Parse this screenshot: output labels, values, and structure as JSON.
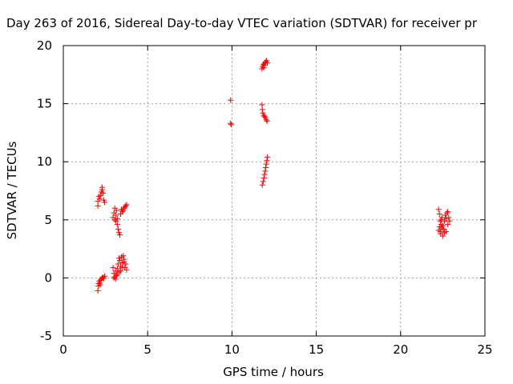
{
  "chart_data": {
    "type": "scatter",
    "title": "Day 263 of 2016, Sidereal Day-to-day VTEC variation (SDTVAR) for receiver pr",
    "xlabel": "GPS time / hours",
    "ylabel": "SDTVAR / TECUs",
    "xlim": [
      0,
      25
    ],
    "ylim": [
      -5,
      20
    ],
    "xticks": [
      "0",
      "5",
      "10",
      "15",
      "20",
      "25"
    ],
    "yticks": [
      "-5",
      "0",
      "5",
      "10",
      "15",
      "20"
    ],
    "grid": true,
    "marker": "+",
    "color": "#ff0000",
    "series": [
      {
        "points": [
          [
            2.05,
            -1.1
          ],
          [
            2.08,
            -0.7
          ],
          [
            2.1,
            -0.5
          ],
          [
            2.13,
            -0.3
          ],
          [
            2.16,
            -0.45
          ],
          [
            2.2,
            -0.2
          ],
          [
            2.25,
            -0.1
          ],
          [
            2.3,
            0.0
          ],
          [
            2.35,
            0.05
          ],
          [
            2.4,
            -0.05
          ],
          [
            2.45,
            0.15
          ],
          [
            2.18,
            -0.6
          ],
          [
            2.05,
            6.2
          ],
          [
            2.05,
            6.6
          ],
          [
            2.1,
            7.0
          ],
          [
            2.15,
            6.8
          ],
          [
            2.2,
            7.1
          ],
          [
            2.25,
            7.4
          ],
          [
            2.3,
            7.6
          ],
          [
            2.35,
            7.3
          ],
          [
            2.4,
            6.7
          ],
          [
            2.45,
            6.5
          ],
          [
            2.3,
            7.8
          ],
          [
            2.95,
            5.2
          ],
          [
            3.0,
            5.6
          ],
          [
            3.05,
            6.0
          ],
          [
            3.1,
            5.4
          ],
          [
            3.15,
            5.8
          ],
          [
            3.2,
            5.1
          ],
          [
            3.2,
            4.6
          ],
          [
            3.25,
            4.2
          ],
          [
            3.3,
            3.9
          ],
          [
            3.35,
            3.7
          ],
          [
            3.4,
            5.5
          ],
          [
            3.45,
            5.9
          ],
          [
            3.5,
            5.7
          ],
          [
            3.55,
            5.8
          ],
          [
            3.6,
            6.0
          ],
          [
            3.65,
            6.1
          ],
          [
            3.7,
            6.2
          ],
          [
            3.75,
            6.3
          ],
          [
            3.05,
            5.0
          ],
          [
            3.12,
            4.9
          ],
          [
            2.95,
            0.9
          ],
          [
            3.0,
            0.4
          ],
          [
            3.05,
            0.1
          ],
          [
            3.1,
            0.6
          ],
          [
            3.15,
            0.2
          ],
          [
            3.2,
            0.8
          ],
          [
            3.25,
            1.2
          ],
          [
            3.3,
            0.5
          ],
          [
            3.35,
            1.5
          ],
          [
            3.4,
            1.0
          ],
          [
            3.45,
            1.8
          ],
          [
            3.5,
            1.3
          ],
          [
            3.55,
            1.9
          ],
          [
            3.6,
            1.6
          ],
          [
            3.65,
            0.9
          ],
          [
            3.7,
            1.2
          ],
          [
            3.75,
            0.7
          ],
          [
            3.0,
            0.0
          ],
          [
            3.1,
            -0.1
          ],
          [
            3.2,
            0.3
          ],
          [
            3.3,
            1.7
          ],
          [
            3.4,
            0.6
          ],
          [
            3.5,
            0.9
          ],
          [
            3.6,
            1.4
          ],
          [
            9.92,
            15.3
          ],
          [
            9.92,
            13.3
          ],
          [
            9.95,
            13.2
          ],
          [
            11.78,
            14.9
          ],
          [
            11.8,
            14.5
          ],
          [
            11.83,
            14.2
          ],
          [
            11.88,
            14.0
          ],
          [
            11.93,
            13.9
          ],
          [
            11.98,
            13.8
          ],
          [
            12.03,
            13.6
          ],
          [
            12.08,
            13.5
          ],
          [
            11.8,
            8.0
          ],
          [
            11.85,
            8.3
          ],
          [
            11.9,
            8.6
          ],
          [
            11.93,
            8.9
          ],
          [
            11.97,
            9.2
          ],
          [
            12.0,
            9.5
          ],
          [
            12.03,
            9.8
          ],
          [
            12.07,
            10.1
          ],
          [
            12.1,
            10.4
          ],
          [
            11.78,
            18.0
          ],
          [
            11.82,
            18.2
          ],
          [
            11.86,
            18.4
          ],
          [
            11.9,
            18.3
          ],
          [
            11.95,
            18.5
          ],
          [
            12.0,
            18.6
          ],
          [
            12.05,
            18.7
          ],
          [
            12.1,
            18.5
          ],
          [
            11.88,
            18.1
          ],
          [
            22.25,
            5.9
          ],
          [
            22.3,
            5.5
          ],
          [
            22.32,
            4.4
          ],
          [
            22.35,
            4.0
          ],
          [
            22.38,
            3.8
          ],
          [
            22.4,
            4.6
          ],
          [
            22.45,
            5.2
          ],
          [
            22.5,
            3.6
          ],
          [
            22.55,
            4.2
          ],
          [
            22.6,
            4.9
          ],
          [
            22.65,
            5.4
          ],
          [
            22.7,
            4.0
          ],
          [
            22.75,
            5.6
          ],
          [
            22.8,
            4.6
          ],
          [
            22.85,
            5.2
          ],
          [
            22.5,
            4.5
          ],
          [
            22.6,
            3.9
          ],
          [
            22.7,
            5.1
          ],
          [
            22.35,
            4.9
          ],
          [
            22.45,
            4.3
          ],
          [
            22.8,
            5.7
          ],
          [
            22.9,
            4.9
          ],
          [
            22.25,
            4.1
          ],
          [
            22.4,
            5.0
          ]
        ]
      }
    ]
  }
}
